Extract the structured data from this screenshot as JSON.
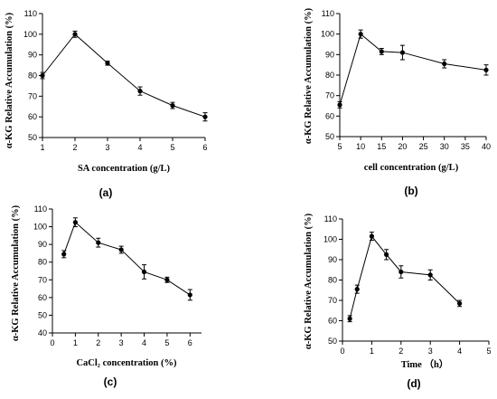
{
  "figure": {
    "background": "#ffffff",
    "line_color": "#000000"
  },
  "chart_data": [
    {
      "type": "line",
      "panel_label": "(a)",
      "xlabel": "SA concentration (g/L)",
      "ylabel": "α-KG Relative Accumulation (%)",
      "xlim": [
        1,
        6
      ],
      "ylim": [
        50,
        110
      ],
      "xticks": [
        1,
        2,
        3,
        4,
        5,
        6
      ],
      "yticks": [
        50,
        60,
        70,
        80,
        90,
        100,
        110
      ],
      "series": [
        {
          "x": [
            1,
            2,
            3,
            4,
            5,
            6
          ],
          "y": [
            80,
            100,
            86,
            72.5,
            65.5,
            60
          ],
          "error": [
            1.5,
            1.5,
            1,
            2,
            1.5,
            2
          ]
        }
      ]
    },
    {
      "type": "line",
      "panel_label": "(b)",
      "xlabel": "cell concentration (g/L)",
      "ylabel": "α-KG Relative Accumulation (%)",
      "xlim": [
        5,
        40
      ],
      "ylim": [
        50,
        110
      ],
      "xticks": [
        5,
        10,
        15,
        20,
        25,
        30,
        35,
        40
      ],
      "yticks": [
        50,
        60,
        70,
        80,
        90,
        100,
        110
      ],
      "series": [
        {
          "x": [
            5,
            10,
            15,
            20,
            30,
            40
          ],
          "y": [
            65.5,
            100,
            91.5,
            91,
            85.5,
            82.5
          ],
          "error": [
            1.5,
            2,
            1.5,
            3.5,
            2,
            2.5
          ]
        }
      ]
    },
    {
      "type": "line",
      "panel_label": "(c)",
      "xlabel": "CaCl₂ concentration (%)",
      "ylabel": "α-KG Relative Accumulation (%)",
      "xlim": [
        0,
        6.5
      ],
      "ylim": [
        40,
        110
      ],
      "xticks": [
        0,
        1,
        2,
        3,
        4,
        5,
        6
      ],
      "yticks": [
        40,
        50,
        60,
        70,
        80,
        90,
        100,
        110
      ],
      "series": [
        {
          "x": [
            0.5,
            1,
            2,
            3,
            4,
            5,
            6
          ],
          "y": [
            84.5,
            102.5,
            91,
            87,
            74.5,
            70,
            61.5
          ],
          "error": [
            2,
            2.5,
            2.5,
            2,
            4,
            1.5,
            3
          ]
        }
      ]
    },
    {
      "type": "line",
      "panel_label": "(d)",
      "xlabel": "Time （h）",
      "ylabel": "α-KG Relative Accumulation (%)",
      "xlim": [
        0,
        5
      ],
      "ylim": [
        50,
        110
      ],
      "xticks": [
        0,
        1,
        2,
        3,
        4,
        5
      ],
      "yticks": [
        50,
        60,
        70,
        80,
        90,
        100,
        110
      ],
      "series": [
        {
          "x": [
            0.25,
            0.5,
            1,
            1.5,
            2,
            3,
            4
          ],
          "y": [
            61,
            75.5,
            101.5,
            92.5,
            84,
            82.5,
            68.5
          ],
          "error": [
            1.5,
            2,
            2,
            2.5,
            3,
            2.5,
            1.5
          ]
        }
      ]
    }
  ]
}
